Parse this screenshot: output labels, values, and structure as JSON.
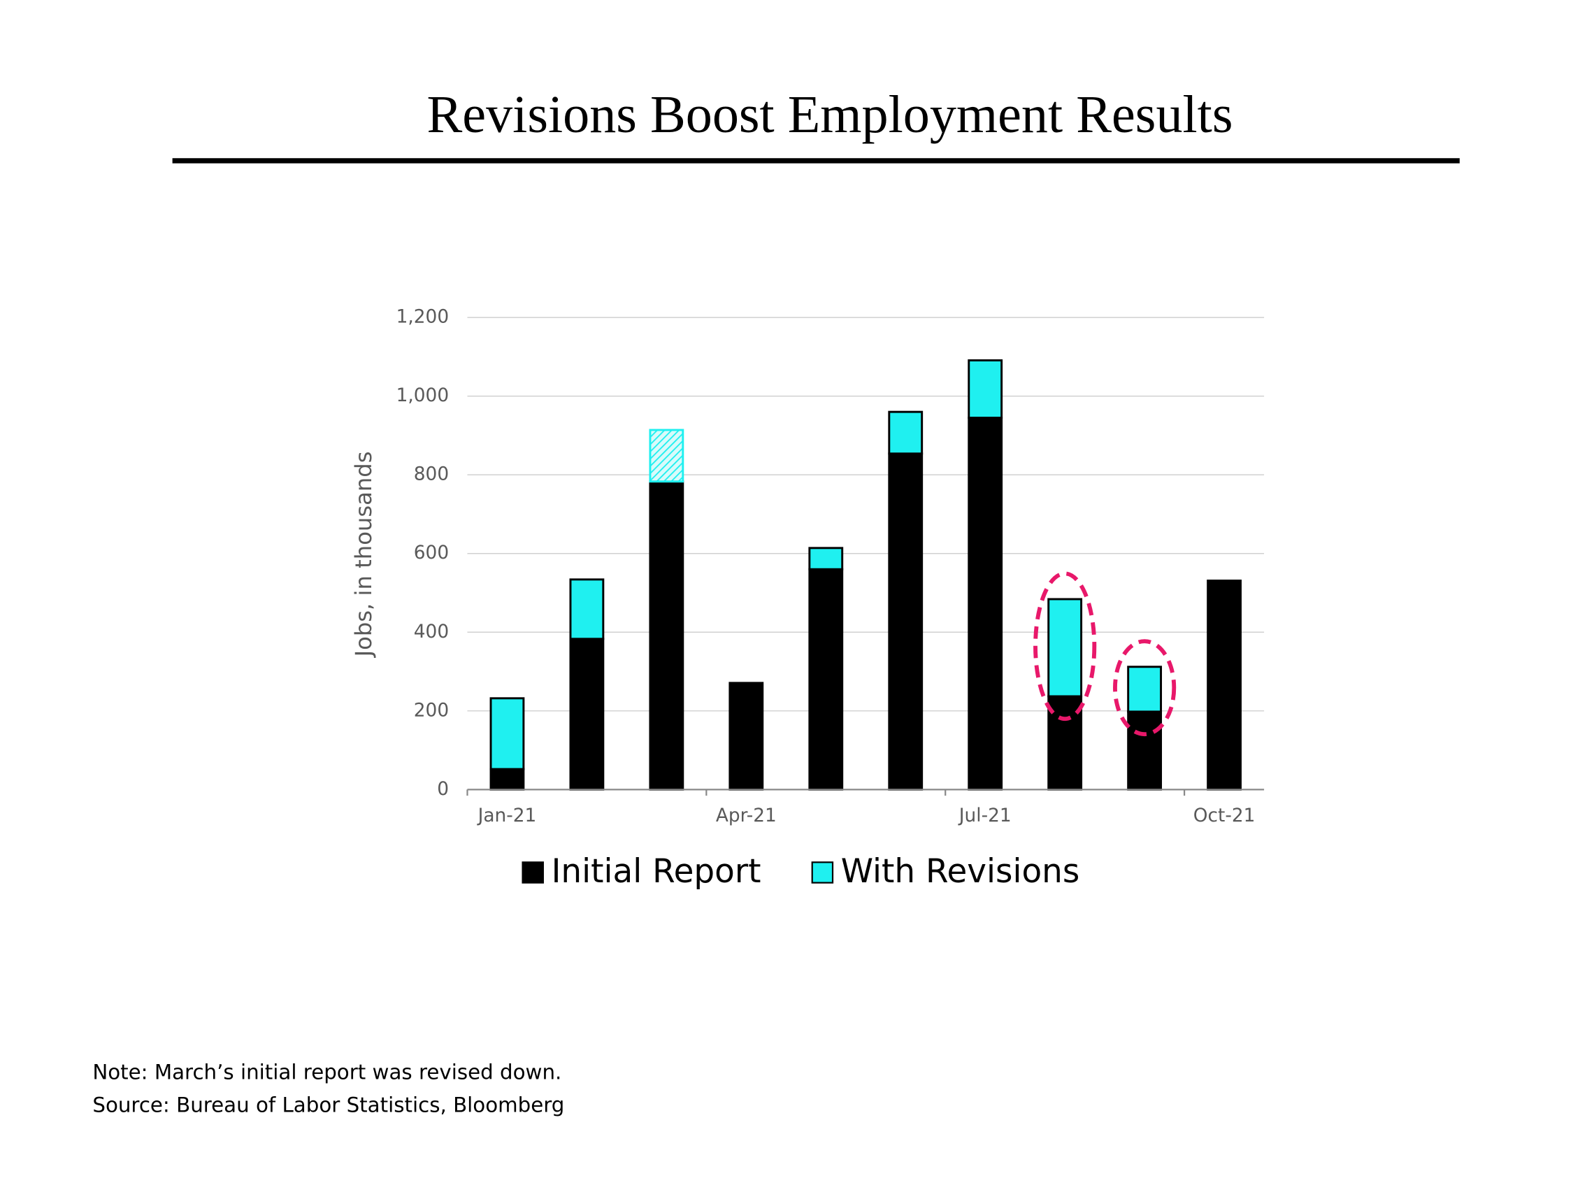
{
  "title": "Revisions Boost Employment Results",
  "chart_data": {
    "type": "stacked-bar",
    "y_label": "Jobs, in thousands",
    "categories": [
      "Jan-21",
      null,
      null,
      "Apr-21",
      null,
      null,
      "Jul-21",
      null,
      null,
      "Oct-21"
    ],
    "series": [
      {
        "name": "Initial Report",
        "color": "#000000",
        "values": [
          52,
          383,
          783,
          271,
          560,
          854,
          945,
          237,
          198,
          531
        ]
      },
      {
        "name": "With Revisions",
        "color": "#1ff0f0",
        "values": [
          180,
          151,
          131,
          null,
          54,
          106,
          146,
          247,
          114,
          null
        ],
        "hatched": [
          false,
          false,
          true,
          false,
          false,
          false,
          false,
          false,
          false,
          false
        ]
      }
    ],
    "ylim": [
      0,
      1200
    ],
    "yticks": [
      0,
      200,
      400,
      600,
      800,
      {
        "value": 1000,
        "label": "1,000"
      },
      {
        "value": 1200,
        "label": "1,200"
      }
    ],
    "grid": true,
    "legend": "bottom",
    "highlighted": [
      7,
      8
    ],
    "highlight_color": "#e8186a"
  },
  "notes": [
    "Note: March’s initial report was revised down.",
    "Source: Bureau of Labor Statistics, Bloomberg"
  ]
}
